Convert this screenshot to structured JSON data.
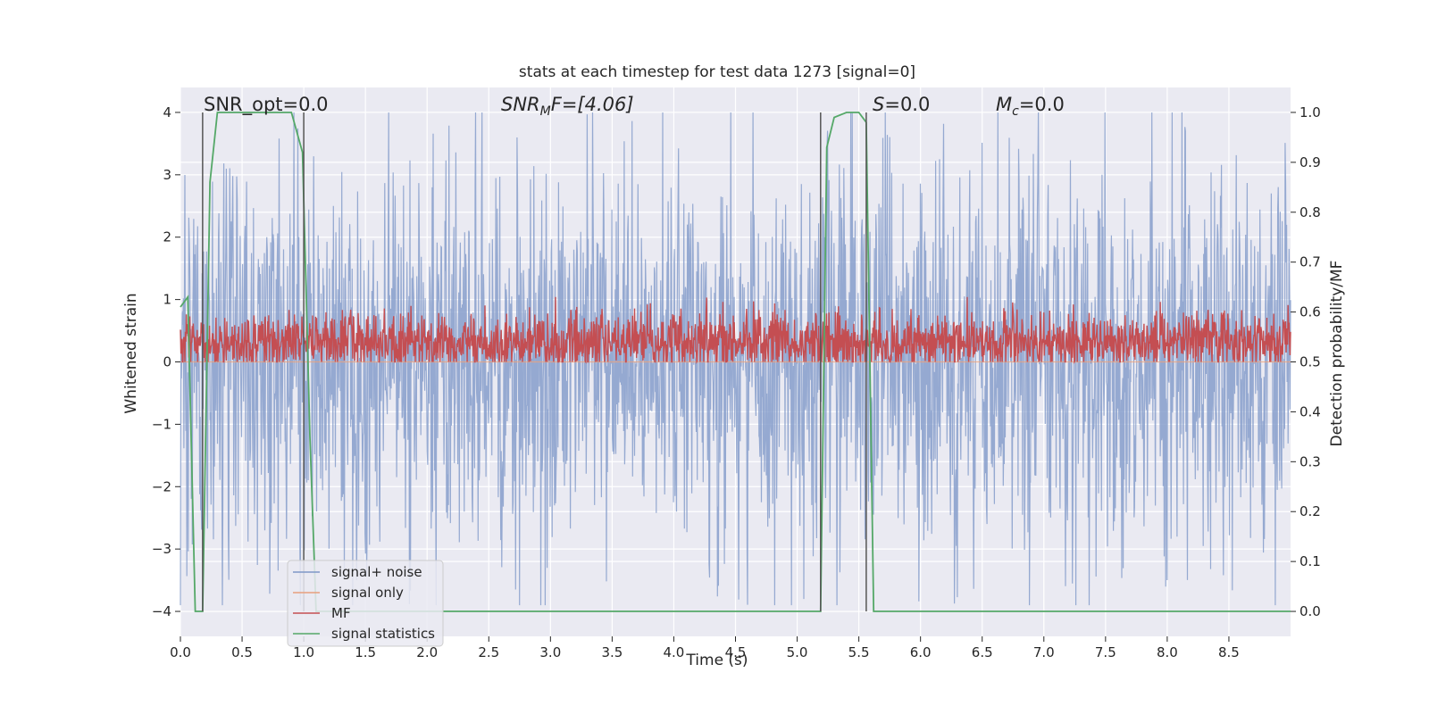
{
  "chart_data": {
    "type": "line",
    "title": "stats at each timestep for test data 1273 [signal=0]",
    "xlabel": "Time (s)",
    "ylabel": "Whitened strain",
    "ylabel_right": "Detection probability/MF",
    "xlim": [
      0.0,
      9.0
    ],
    "ylim": [
      -4.4,
      4.4
    ],
    "ylim_right": [
      -0.05,
      1.05
    ],
    "x_ticks": [
      0.0,
      0.5,
      1.0,
      1.5,
      2.0,
      2.5,
      3.0,
      3.5,
      4.0,
      4.5,
      5.0,
      5.5,
      6.0,
      6.5,
      7.0,
      7.5,
      8.0,
      8.5
    ],
    "x_tick_labels": [
      "0.0",
      "0.5",
      "1.0",
      "1.5",
      "2.0",
      "2.5",
      "3.0",
      "3.5",
      "4.0",
      "4.5",
      "5.0",
      "5.5",
      "6.0",
      "6.5",
      "7.0",
      "7.5",
      "8.0",
      "8.5"
    ],
    "y_ticks": [
      -4,
      -3,
      -2,
      -1,
      0,
      1,
      2,
      3,
      4
    ],
    "y_tick_labels": [
      "−4",
      "−3",
      "−2",
      "−1",
      "0",
      "1",
      "2",
      "3",
      "4"
    ],
    "y_ticks_right": [
      0.0,
      0.1,
      0.2,
      0.3,
      0.4,
      0.5,
      0.6,
      0.7,
      0.8,
      0.9,
      1.0
    ],
    "y_tick_labels_right": [
      "0.0",
      "0.1",
      "0.2",
      "0.3",
      "0.4",
      "0.5",
      "0.6",
      "0.7",
      "0.8",
      "0.9",
      "1.0"
    ],
    "grid": true,
    "legend_position": "lower-left",
    "legend": [
      {
        "name": "signal+ noise",
        "color": "#7f98c8"
      },
      {
        "name": "signal only",
        "color": "#e8a07d"
      },
      {
        "name": "MF",
        "color": "#c44e52"
      },
      {
        "name": "signal statistics",
        "color": "#55a868"
      }
    ],
    "annotations": {
      "snr_opt": "SNR_opt=0.0",
      "snr_mf_main": "SNR",
      "snr_mf_sub": "M",
      "snr_mf_rest": "F=[4.06]",
      "s_main": "S",
      "s_rest": "=0.0",
      "mc_main": "M",
      "mc_sub": "c",
      "mc_rest": "=0.0"
    },
    "vlines_x": [
      0.18,
      1.0,
      5.19,
      5.56
    ],
    "series": [
      {
        "name": "signal+ noise",
        "color": "#7f98c8",
        "x_range": [
          0.0,
          9.0
        ],
        "samples": 2250,
        "typical_range": [
          -2.6,
          2.6
        ],
        "extreme_range": [
          -3.9,
          4.0
        ]
      },
      {
        "name": "signal only",
        "color": "#e8a07d",
        "x": [
          0.0,
          9.0
        ],
        "y": [
          0.0,
          0.0
        ]
      },
      {
        "name": "MF",
        "axis": "right",
        "color": "#c44e52",
        "x_range": [
          0.0,
          9.0
        ],
        "samples": 2250,
        "typical_range": [
          0.5,
          0.58
        ],
        "extreme_range": [
          0.5,
          0.63
        ]
      },
      {
        "name": "signal statistics",
        "axis": "right",
        "color": "#55a868",
        "x": [
          0.0,
          0.06,
          0.12,
          0.18,
          0.24,
          0.3,
          0.9,
          0.99,
          1.05,
          1.1,
          5.1,
          5.19,
          5.24,
          5.3,
          5.4,
          5.5,
          5.56,
          5.62,
          9.0
        ],
        "y": [
          0.61,
          0.63,
          0.0,
          0.0,
          0.86,
          1.0,
          1.0,
          0.92,
          0.35,
          0.0,
          0.0,
          0.0,
          0.93,
          0.99,
          1.0,
          1.0,
          0.98,
          0.0,
          0.0
        ]
      }
    ]
  }
}
